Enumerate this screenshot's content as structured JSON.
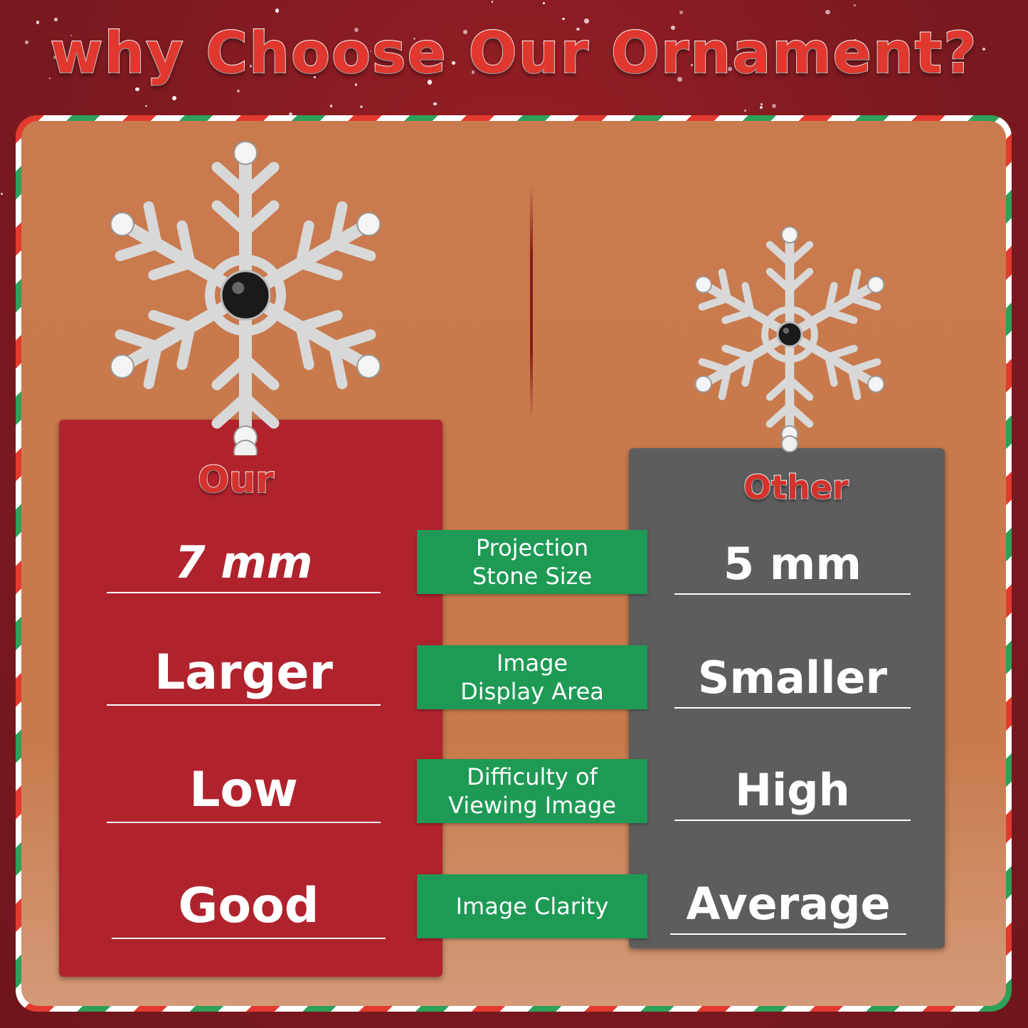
{
  "title": "why Choose Our Ornament?",
  "columns": {
    "ours": "Our",
    "other": "Other"
  },
  "rows": [
    {
      "label": "Projection\nStone Size",
      "ours": "7 mm",
      "other": "5 mm"
    },
    {
      "label": "Image\nDisplay Area",
      "ours": "Larger",
      "other": "Smaller"
    },
    {
      "label": "Difficulty of\nViewing Image",
      "ours": "Low",
      "other": "High"
    },
    {
      "label": "Image Clarity",
      "ours": "Good",
      "other": "Average"
    }
  ],
  "colors": {
    "background": "#7c1a20",
    "panel": "#c97a4e",
    "ours_card": "#b0232d",
    "other_card": "#5d5d5d",
    "label": "#1f9a55",
    "title": "#e0382f"
  },
  "images": {
    "ours": "large-snowflake-ornament",
    "other": "small-snowflake-ornament"
  }
}
